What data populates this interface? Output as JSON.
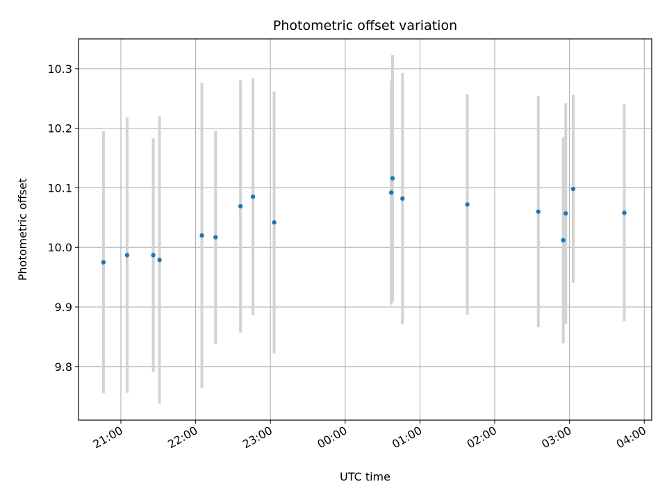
{
  "chart_data": {
    "type": "scatter",
    "title": "Photometric offset variation",
    "xlabel": "UTC time",
    "ylabel": "Photometric offset",
    "x_start": "20:26",
    "x_end": "04:06",
    "x_ticks": [
      "21:00",
      "22:00",
      "23:00",
      "00:00",
      "01:00",
      "02:00",
      "03:00",
      "04:00"
    ],
    "ylim": [
      9.71,
      10.35
    ],
    "y_ticks": [
      9.8,
      9.9,
      10.0,
      10.1,
      10.2,
      10.3
    ],
    "grid": true,
    "colors": {
      "marker": "#1f77b4",
      "errorbar": "#d3d3d3",
      "grid": "#b0b0b0"
    },
    "points": [
      {
        "time": "20:46",
        "y": 9.975,
        "err": 0.22
      },
      {
        "time": "21:05",
        "y": 9.987,
        "err": 0.231
      },
      {
        "time": "21:26",
        "y": 9.987,
        "err": 0.196
      },
      {
        "time": "21:31",
        "y": 9.979,
        "err": 0.241
      },
      {
        "time": "22:05",
        "y": 10.02,
        "err": 0.256
      },
      {
        "time": "22:16",
        "y": 10.017,
        "err": 0.179
      },
      {
        "time": "22:36",
        "y": 10.069,
        "err": 0.212
      },
      {
        "time": "22:46",
        "y": 10.085,
        "err": 0.199
      },
      {
        "time": "23:03",
        "y": 10.042,
        "err": 0.22
      },
      {
        "time": "00:37",
        "y": 10.092,
        "err": 0.188
      },
      {
        "time": "00:38",
        "y": 10.116,
        "err": 0.207
      },
      {
        "time": "00:46",
        "y": 10.082,
        "err": 0.211
      },
      {
        "time": "01:38",
        "y": 10.072,
        "err": 0.185
      },
      {
        "time": "02:35",
        "y": 10.06,
        "err": 0.194
      },
      {
        "time": "02:55",
        "y": 10.012,
        "err": 0.173
      },
      {
        "time": "02:57",
        "y": 10.057,
        "err": 0.185
      },
      {
        "time": "03:03",
        "y": 10.098,
        "err": 0.158
      },
      {
        "time": "03:44",
        "y": 10.058,
        "err": 0.182
      }
    ]
  }
}
